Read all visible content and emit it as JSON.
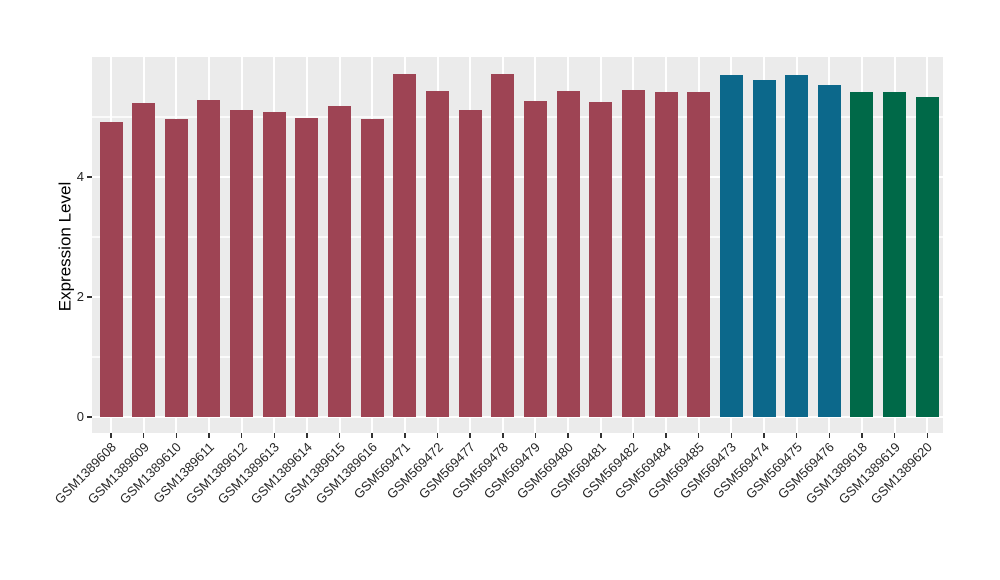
{
  "figure": {
    "background": "#FFFFFF",
    "panel_background": "#EBEBEB",
    "grid_color": "#FFFFFF",
    "axis_text_color": "#262626",
    "axis_title_color": "#000000"
  },
  "chart_data": {
    "type": "bar",
    "title": "",
    "xlabel": "",
    "ylabel": "Expression Level",
    "ylim": [
      0,
      6
    ],
    "yticks": [
      0,
      2,
      4
    ],
    "minor_yticks": [
      1,
      3,
      5
    ],
    "grid": true,
    "legend_position": "none",
    "categories": [
      "GSM1389608",
      "GSM1389609",
      "GSM1389610",
      "GSM1389611",
      "GSM1389612",
      "GSM1389613",
      "GSM1389614",
      "GSM1389615",
      "GSM1389616",
      "GSM569471",
      "GSM569472",
      "GSM569477",
      "GSM569478",
      "GSM569479",
      "GSM569480",
      "GSM569481",
      "GSM569482",
      "GSM569484",
      "GSM569485",
      "GSM569473",
      "GSM569474",
      "GSM569475",
      "GSM569476",
      "GSM1389618",
      "GSM1389619",
      "GSM1389620"
    ],
    "values": [
      4.92,
      5.23,
      4.97,
      5.28,
      5.11,
      5.08,
      4.98,
      5.18,
      4.97,
      5.71,
      5.44,
      5.12,
      5.72,
      5.27,
      5.44,
      5.25,
      5.45,
      5.42,
      5.41,
      5.7,
      5.62,
      5.7,
      5.53,
      5.41,
      5.41,
      5.34
    ],
    "groups": [
      "group1",
      "group1",
      "group1",
      "group1",
      "group1",
      "group1",
      "group1",
      "group1",
      "group1",
      "group1",
      "group1",
      "group1",
      "group1",
      "group1",
      "group1",
      "group1",
      "group1",
      "group1",
      "group1",
      "group2",
      "group2",
      "group2",
      "group2",
      "group3",
      "group3",
      "group3"
    ],
    "palette": {
      "group1": "#9E4454",
      "group2": "#0C688B",
      "group3": "#006948"
    }
  }
}
